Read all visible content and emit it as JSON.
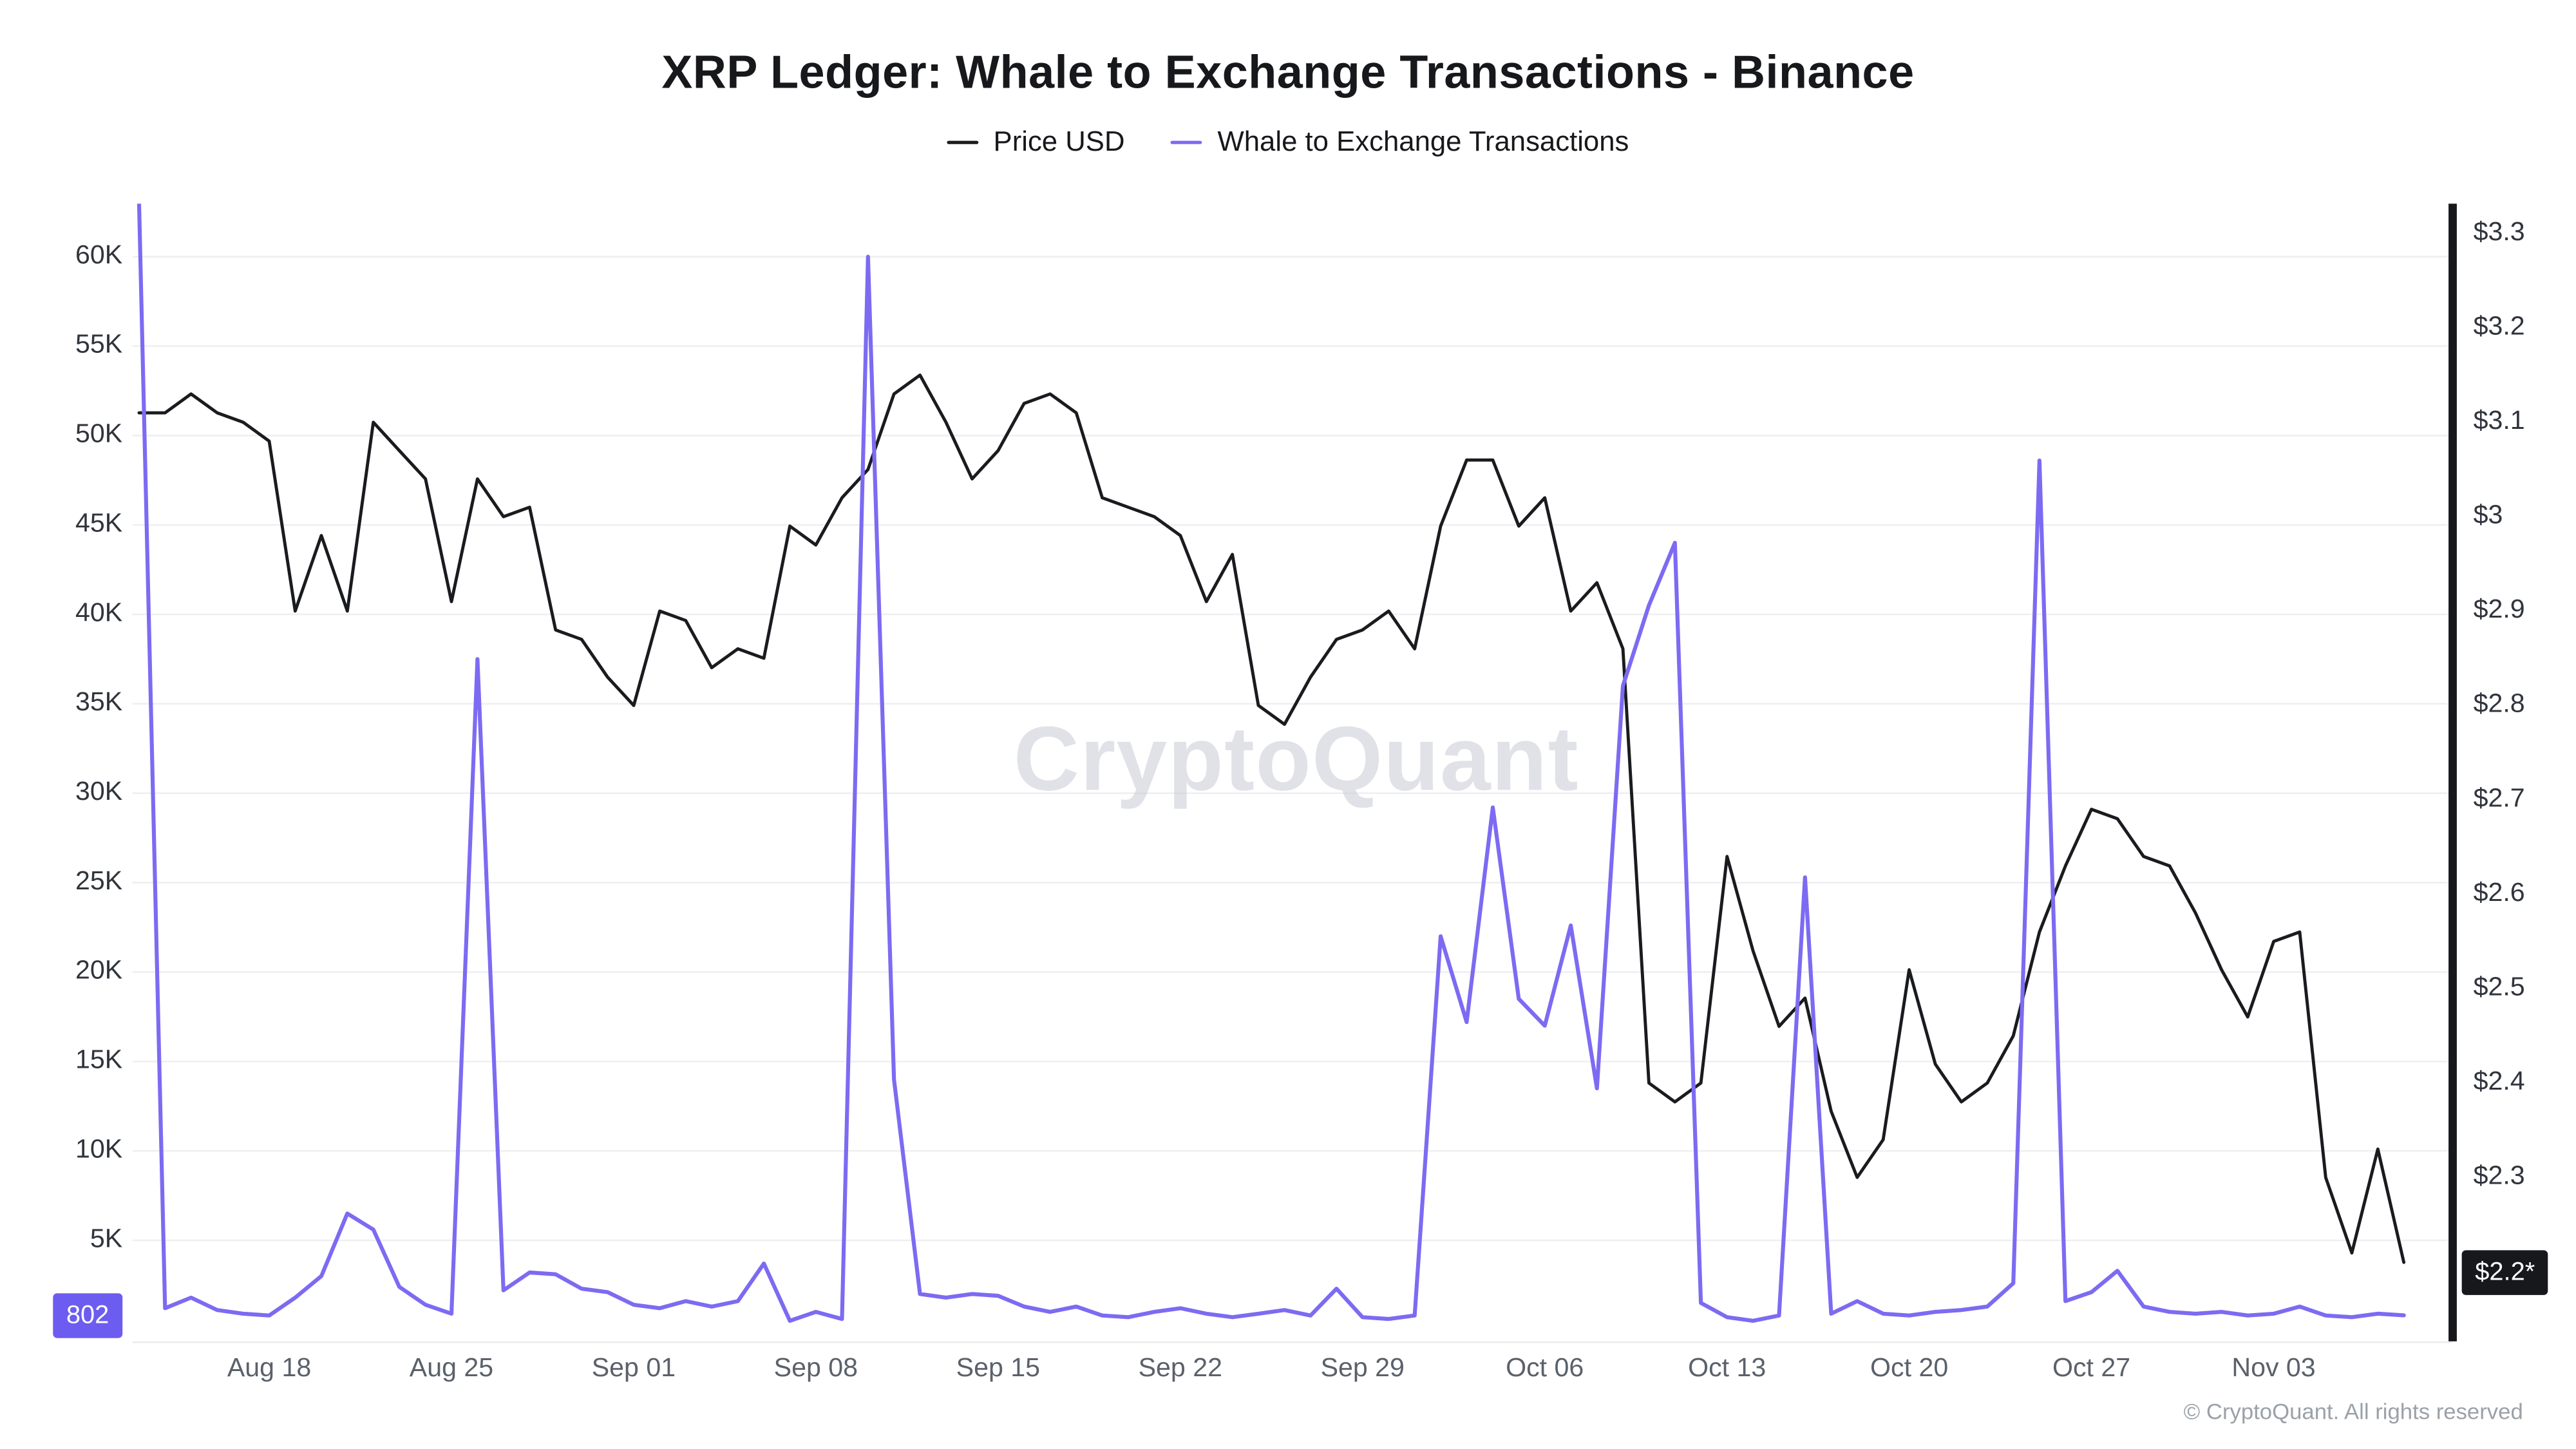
{
  "title": "XRP Ledger: Whale to Exchange Transactions - Binance",
  "legend": [
    {
      "label": "Price USD"
    },
    {
      "label": "Whale to Exchange Transactions"
    }
  ],
  "footer": "© CryptoQuant. All rights reserved",
  "chart_data": {
    "type": "line",
    "title": "XRP Ledger: Whale to Exchange Transactions - Binance",
    "watermark": "CryptoQuant",
    "grid": "horizontal",
    "legend_position": "top",
    "x": [
      "Aug 13",
      "Aug 14",
      "Aug 15",
      "Aug 16",
      "Aug 17",
      "Aug 18",
      "Aug 19",
      "Aug 20",
      "Aug 21",
      "Aug 22",
      "Aug 23",
      "Aug 24",
      "Aug 25",
      "Aug 26",
      "Aug 27",
      "Aug 28",
      "Aug 29",
      "Aug 30",
      "Aug 31",
      "Sep 01",
      "Sep 02",
      "Sep 03",
      "Sep 04",
      "Sep 05",
      "Sep 06",
      "Sep 07",
      "Sep 08",
      "Sep 09",
      "Sep 10",
      "Sep 11",
      "Sep 12",
      "Sep 13",
      "Sep 14",
      "Sep 15",
      "Sep 16",
      "Sep 17",
      "Sep 18",
      "Sep 19",
      "Sep 20",
      "Sep 21",
      "Sep 22",
      "Sep 23",
      "Sep 24",
      "Sep 25",
      "Sep 26",
      "Sep 27",
      "Sep 28",
      "Sep 29",
      "Sep 30",
      "Oct 01",
      "Oct 02",
      "Oct 03",
      "Oct 04",
      "Oct 05",
      "Oct 06",
      "Oct 07",
      "Oct 08",
      "Oct 09",
      "Oct 10",
      "Oct 11",
      "Oct 12",
      "Oct 13",
      "Oct 14",
      "Oct 15",
      "Oct 16",
      "Oct 17",
      "Oct 18",
      "Oct 19",
      "Oct 20",
      "Oct 21",
      "Oct 22",
      "Oct 23",
      "Oct 24",
      "Oct 25",
      "Oct 26",
      "Oct 27",
      "Oct 28",
      "Oct 29",
      "Oct 30",
      "Oct 31",
      "Nov 01",
      "Nov 02",
      "Nov 03",
      "Nov 04",
      "Nov 05",
      "Nov 06",
      "Nov 07",
      "Nov 08"
    ],
    "x_ticks": [
      {
        "label": "Aug 18",
        "index": 5
      },
      {
        "label": "Aug 25",
        "index": 12
      },
      {
        "label": "Sep 01",
        "index": 19
      },
      {
        "label": "Sep 08",
        "index": 26
      },
      {
        "label": "Sep 15",
        "index": 33
      },
      {
        "label": "Sep 22",
        "index": 40
      },
      {
        "label": "Sep 29",
        "index": 47
      },
      {
        "label": "Oct 06",
        "index": 54
      },
      {
        "label": "Oct 13",
        "index": 61
      },
      {
        "label": "Oct 20",
        "index": 68
      },
      {
        "label": "Oct 27",
        "index": 75
      },
      {
        "label": "Nov 03",
        "index": 82
      }
    ],
    "series": [
      {
        "name": "Price USD",
        "yaxis": "right",
        "color": "#1a1b1f",
        "values": [
          3.11,
          3.11,
          3.13,
          3.11,
          3.1,
          3.08,
          2.9,
          2.98,
          2.9,
          3.1,
          3.07,
          3.04,
          2.91,
          3.04,
          3.0,
          3.01,
          2.88,
          2.87,
          2.83,
          2.8,
          2.9,
          2.89,
          2.84,
          2.86,
          2.85,
          2.99,
          2.97,
          3.02,
          3.05,
          3.13,
          3.15,
          3.1,
          3.04,
          3.07,
          3.12,
          3.13,
          3.11,
          3.02,
          3.01,
          3.0,
          2.98,
          2.91,
          2.96,
          2.8,
          2.78,
          2.83,
          2.87,
          2.88,
          2.9,
          2.86,
          2.99,
          3.06,
          3.06,
          2.99,
          3.02,
          2.9,
          2.93,
          2.86,
          2.4,
          2.38,
          2.4,
          2.64,
          2.54,
          2.46,
          2.49,
          2.37,
          2.3,
          2.34,
          2.52,
          2.42,
          2.38,
          2.4,
          2.45,
          2.56,
          2.63,
          2.69,
          2.68,
          2.64,
          2.63,
          2.58,
          2.52,
          2.47,
          2.55,
          2.56,
          2.3,
          2.22,
          2.33,
          2.21
        ]
      },
      {
        "name": "Whale to Exchange Transactions",
        "yaxis": "left",
        "color": "#7c6bf2",
        "values": [
          63000,
          1200,
          1800,
          1100,
          900,
          800,
          1800,
          3000,
          6500,
          5600,
          2400,
          1400,
          900,
          37500,
          2200,
          3200,
          3100,
          2300,
          2100,
          1400,
          1200,
          1600,
          1300,
          1600,
          3700,
          500,
          1000,
          600,
          60000,
          14000,
          2000,
          1800,
          2000,
          1900,
          1300,
          1000,
          1300,
          800,
          700,
          1000,
          1200,
          900,
          700,
          900,
          1100,
          800,
          2300,
          700,
          600,
          800,
          22000,
          17200,
          29200,
          18500,
          17000,
          22600,
          13500,
          36000,
          40500,
          44000,
          1500,
          700,
          500,
          800,
          25300,
          900,
          1600,
          900,
          800,
          1000,
          1100,
          1300,
          2600,
          48600,
          1600,
          2100,
          3300,
          1300,
          1000,
          900,
          1000,
          800,
          900,
          1300,
          800,
          700,
          900,
          802
        ]
      }
    ],
    "left_axis": {
      "tick_labels": [
        "60K",
        "55K",
        "50K",
        "45K",
        "40K",
        "35K",
        "30K",
        "25K",
        "20K",
        "15K",
        "10K",
        "5K"
      ],
      "tick_values": [
        60000,
        55000,
        50000,
        45000,
        40000,
        35000,
        30000,
        25000,
        20000,
        15000,
        10000,
        5000
      ],
      "range": [
        0,
        63600
      ],
      "latest_badge": {
        "label": "802",
        "value": 802,
        "color": "#6c5cf0"
      }
    },
    "right_axis": {
      "tick_labels": [
        "$3.3",
        "$3.2",
        "$3.1",
        "$3",
        "$2.9",
        "$2.8",
        "$2.7",
        "$2.6",
        "$2.5",
        "$2.4",
        "$2.3"
      ],
      "tick_values": [
        3.3,
        3.2,
        3.1,
        3.0,
        2.9,
        2.8,
        2.7,
        2.6,
        2.5,
        2.4,
        2.3
      ],
      "range": [
        2.1,
        3.33
      ],
      "latest_badge": {
        "label": "$2.2*",
        "value": 2.2,
        "color": "#17181c"
      }
    }
  }
}
